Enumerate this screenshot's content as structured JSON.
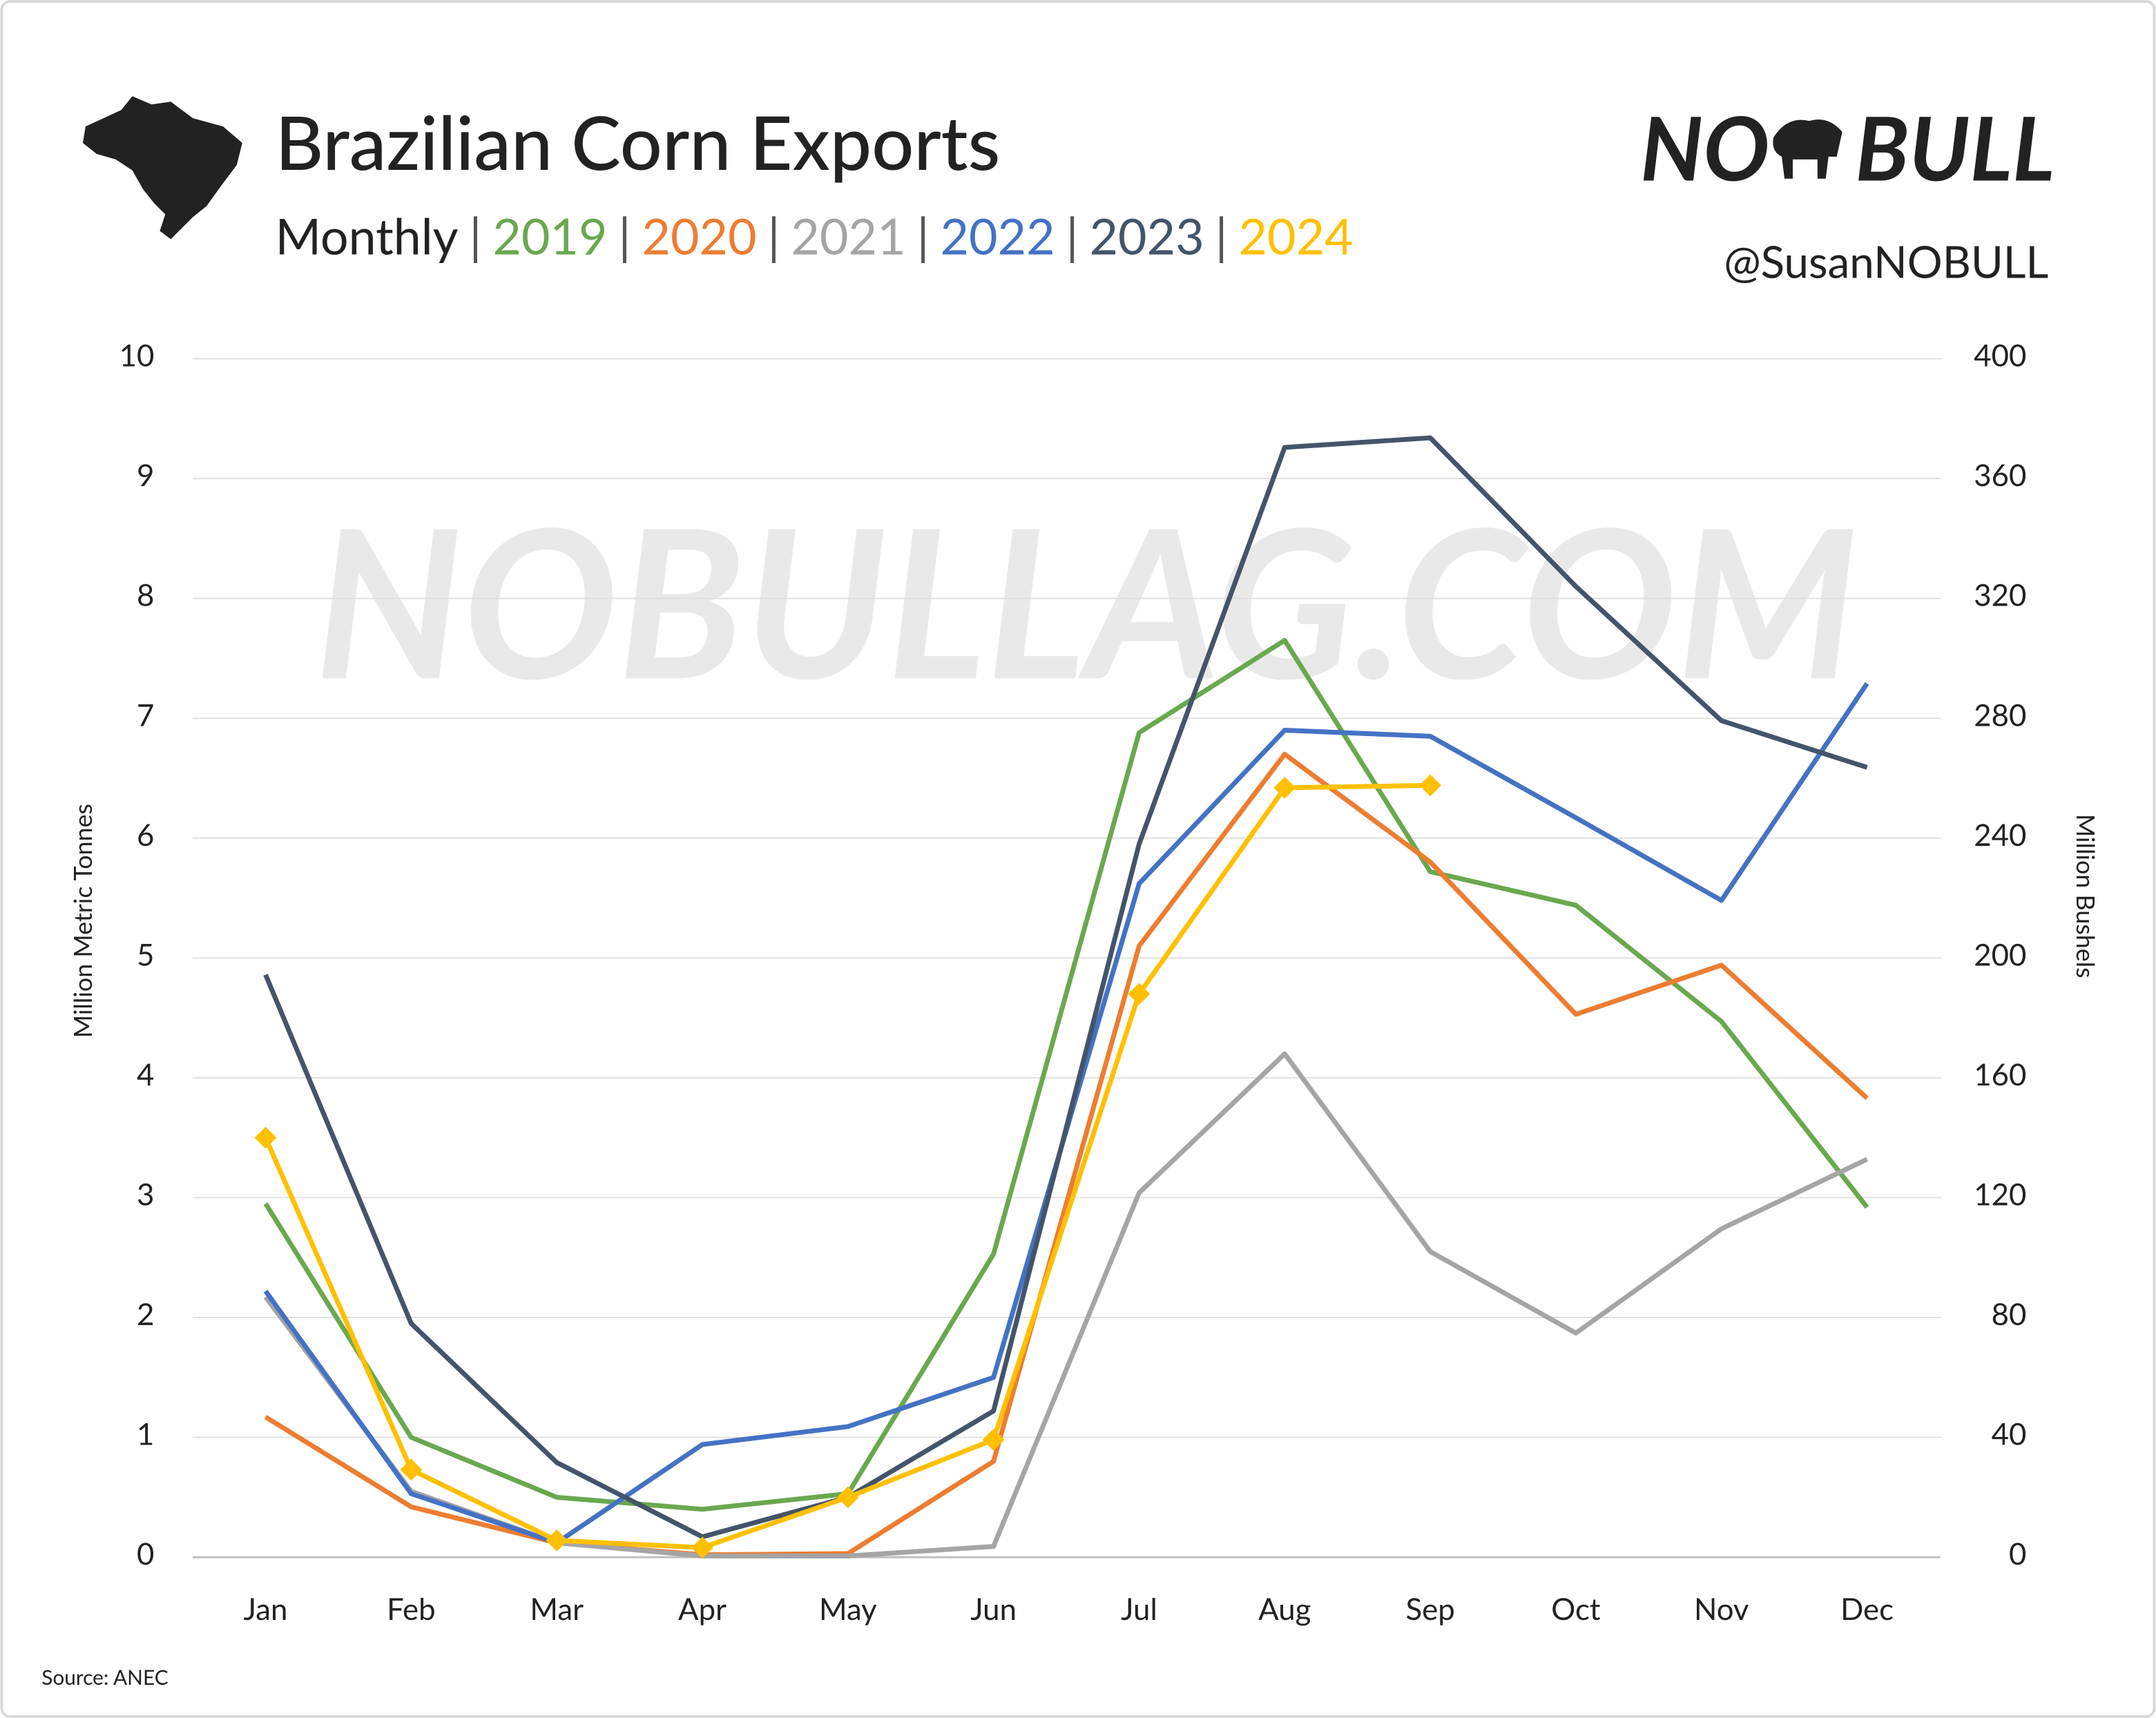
{
  "chart_data": {
    "type": "line",
    "title": "Brazilian Corn Exports",
    "subtitle": "Monthly",
    "legend_separator": "|",
    "y_label": "Million Metric Tonnes",
    "y2_label": "Million Bushels",
    "source": "Source: ANEC",
    "categories": [
      "Jan",
      "Feb",
      "Mar",
      "Apr",
      "May",
      "Jun",
      "Jul",
      "Aug",
      "Sep",
      "Oct",
      "Nov",
      "Dec"
    ],
    "ylim": [
      0,
      10
    ],
    "yticks": [
      0,
      1,
      2,
      3,
      4,
      5,
      6,
      7,
      8,
      9,
      10
    ],
    "y2lim": [
      0,
      400
    ],
    "y2ticks": [
      0,
      40,
      80,
      120,
      160,
      200,
      240,
      280,
      320,
      360,
      400
    ],
    "grid": true,
    "series": [
      {
        "name": "2019",
        "color": "#6aa84f",
        "values": [
          2.95,
          1.0,
          0.5,
          0.4,
          0.53,
          2.53,
          6.88,
          7.65,
          5.72,
          5.44,
          4.47,
          2.92
        ]
      },
      {
        "name": "2020",
        "color": "#ed7d31",
        "values": [
          1.17,
          0.42,
          0.12,
          0.02,
          0.03,
          0.8,
          5.1,
          6.7,
          5.8,
          4.53,
          4.94,
          3.83
        ]
      },
      {
        "name": "2021",
        "color": "#a5a5a5",
        "values": [
          2.17,
          0.55,
          0.12,
          0.01,
          0.01,
          0.09,
          3.04,
          4.2,
          2.55,
          1.87,
          2.74,
          3.32
        ]
      },
      {
        "name": "2022",
        "color": "#4472c4",
        "values": [
          2.22,
          0.53,
          0.12,
          0.94,
          1.09,
          1.5,
          5.62,
          6.9,
          6.85,
          6.17,
          5.48,
          7.29
        ]
      },
      {
        "name": "2023",
        "color": "#44546a",
        "values": [
          4.86,
          1.95,
          0.79,
          0.17,
          0.5,
          1.22,
          5.95,
          9.26,
          9.34,
          8.1,
          6.98,
          6.59
        ]
      },
      {
        "name": "2024",
        "color": "#ffc000",
        "marker": "diamond",
        "values": [
          3.5,
          0.73,
          0.14,
          0.08,
          0.5,
          0.98,
          4.7,
          6.42,
          6.44,
          null,
          null,
          null
        ]
      }
    ]
  },
  "branding": {
    "watermark": "NOBULLAG.COM",
    "logo_left": "NO",
    "logo_right": "BULL",
    "handle": "@SusanNOBULL"
  }
}
